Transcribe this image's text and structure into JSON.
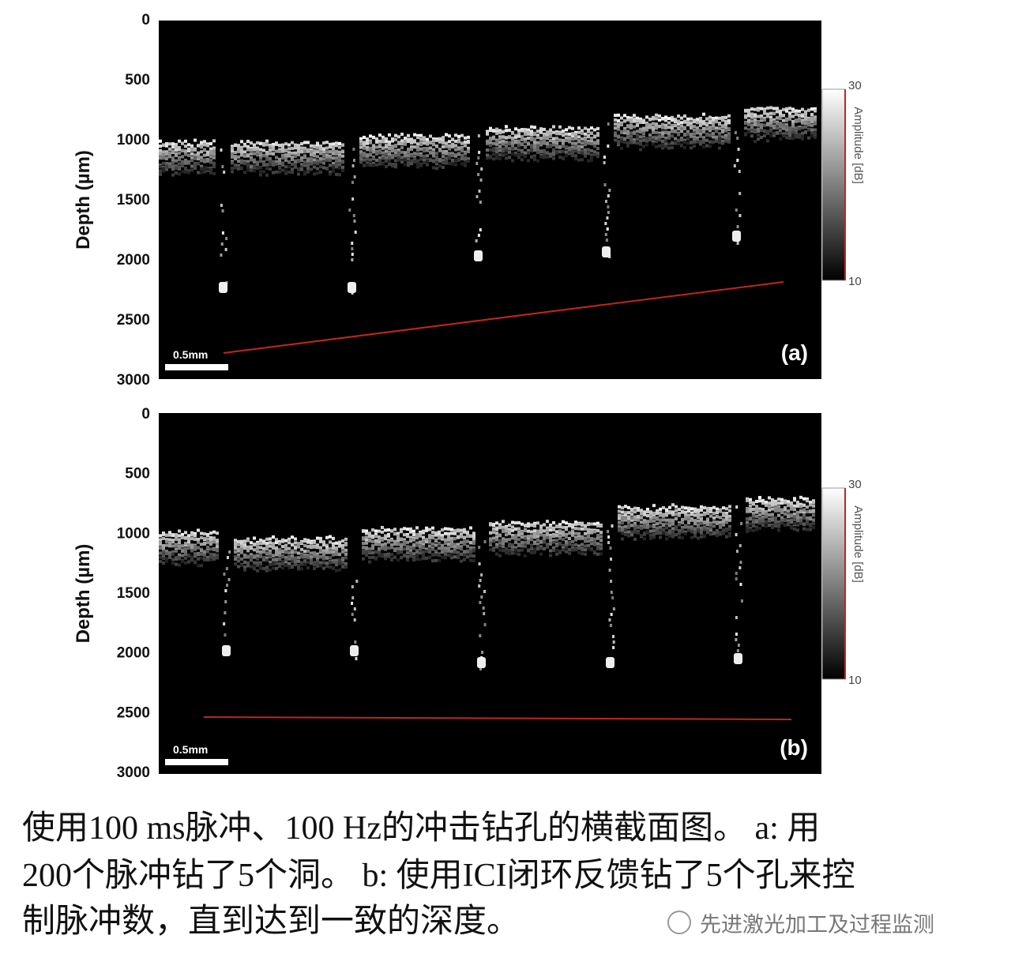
{
  "panels": [
    {
      "y_axis_label": "Depth (µm)",
      "yticks": [
        0,
        500,
        1000,
        1500,
        2000,
        2500,
        3000
      ],
      "colorbar": {
        "label": "Amplitude [dB]",
        "ticks": [
          30,
          10
        ]
      },
      "scale_bar": "0.5mm",
      "panel_label": "(a)"
    },
    {
      "y_axis_label": "Depth (µm)",
      "yticks": [
        0,
        500,
        1000,
        1500,
        2000,
        2500,
        3000
      ],
      "colorbar": {
        "label": "Amplitude [dB]",
        "ticks": [
          30,
          10
        ]
      },
      "scale_bar": "0.5mm",
      "panel_label": "(b)"
    }
  ],
  "caption": [
    "使用100 ms脉冲、100 Hz的冲击钻孔的横截面图。 a: 用",
    "200个脉冲钻了5个洞。 b: 使用ICI闭环反馈钻了5个孔来控",
    "制脉冲数，直到达到一致的深度。"
  ],
  "watermark": "先进激光加工及过程监测"
}
